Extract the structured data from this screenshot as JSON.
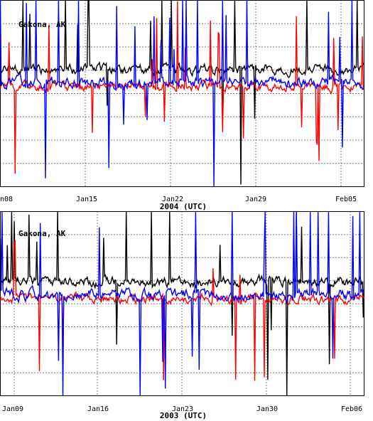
{
  "chart_data": [
    {
      "type": "line",
      "station": "Gakona, AK",
      "xlabel": "2004 (UTC)",
      "ticks": [
        "n08",
        "Jan15",
        "Jan22",
        "Jan29",
        "Feb05"
      ],
      "series_colors": [
        "#000000",
        "#ff0000",
        "#0000ff"
      ],
      "grid": true
    },
    {
      "type": "line",
      "station": "Gakona, AK",
      "xlabel": "2003 (UTC)",
      "ticks": [
        "Jan09",
        "Jan16",
        "Jan23",
        "Jan30",
        "Feb06"
      ],
      "series_colors": [
        "#000000",
        "#ff0000",
        "#0000ff"
      ],
      "grid": true
    }
  ]
}
